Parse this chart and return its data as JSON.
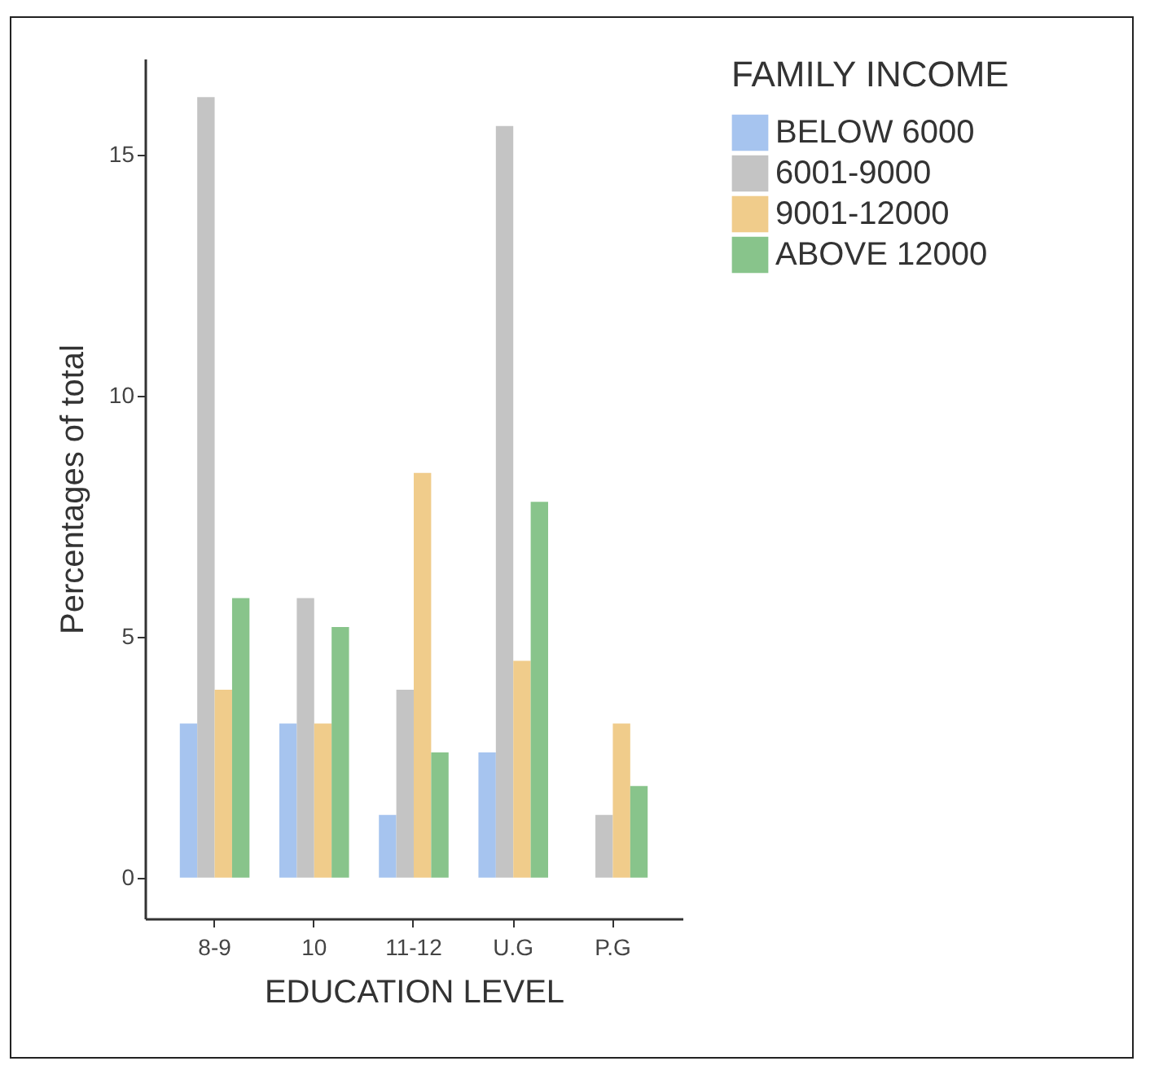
{
  "chart_data": {
    "type": "bar",
    "xlabel": "EDUCATION LEVEL",
    "ylabel": "Percentages of total",
    "legend_title": "FAMILY INCOME",
    "legend": "right",
    "grid": false,
    "categories": [
      "8-9",
      "10",
      "11-12",
      "U.G",
      "P.G"
    ],
    "ylim": [
      -0.85,
      17
    ],
    "yticks": [
      0,
      5,
      10,
      15
    ],
    "series": [
      {
        "name": "BELOW 6000",
        "color": "#a6c4ef",
        "values": [
          3.2,
          3.2,
          1.3,
          2.6,
          null
        ]
      },
      {
        "name": "6001-9000",
        "color": "#c4c4c4",
        "values": [
          16.2,
          5.8,
          3.9,
          15.6,
          1.3
        ]
      },
      {
        "name": "9001-12000",
        "color": "#f0cc8b",
        "values": [
          3.9,
          3.2,
          8.4,
          4.5,
          3.2
        ]
      },
      {
        "name": "ABOVE 12000",
        "color": "#88c48b",
        "values": [
          5.8,
          5.2,
          2.6,
          7.8,
          1.9
        ]
      }
    ]
  }
}
